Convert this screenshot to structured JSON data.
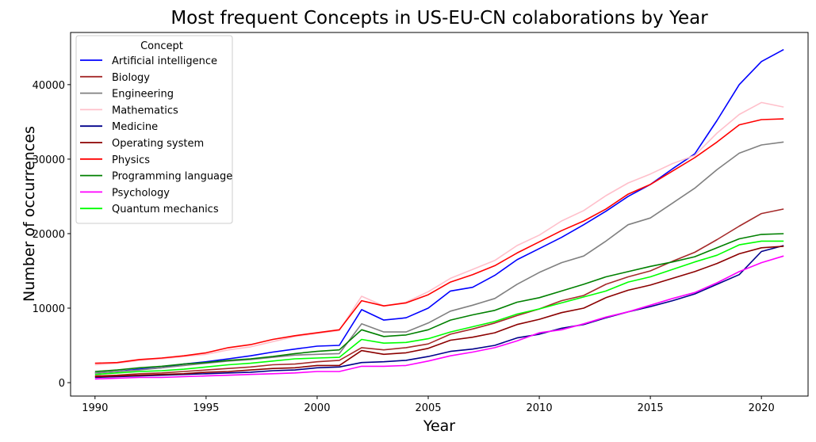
{
  "chart_data": {
    "type": "line",
    "title": "Most frequent Concepts in US-EU-CN colaborations by Year",
    "xlabel": "Year",
    "ylabel": "Number of occurrences",
    "xlim": [
      1988.9,
      2022.1
    ],
    "ylim": [
      -1800,
      47000
    ],
    "x_ticks": [
      1990,
      1995,
      2000,
      2005,
      2010,
      2015,
      2020
    ],
    "y_ticks": [
      0,
      10000,
      20000,
      30000,
      40000
    ],
    "grid": false,
    "legend": {
      "title": "Concept",
      "position": "top-left"
    },
    "x": [
      1990,
      1991,
      1992,
      1993,
      1994,
      1995,
      1996,
      1997,
      1998,
      1999,
      2000,
      2001,
      2002,
      2003,
      2004,
      2005,
      2006,
      2007,
      2008,
      2009,
      2010,
      2011,
      2012,
      2013,
      2014,
      2015,
      2016,
      2017,
      2018,
      2019,
      2020,
      2021
    ],
    "series": [
      {
        "name": "Artificial intelligence",
        "color": "#0000ff",
        "values": [
          1300,
          1500,
          1800,
          2000,
          2500,
          2800,
          3200,
          3600,
          4100,
          4500,
          4900,
          5000,
          9800,
          8400,
          8700,
          10000,
          12300,
          12800,
          14400,
          16500,
          18000,
          19500,
          21200,
          23000,
          25000,
          26600,
          28700,
          30700,
          35200,
          40000,
          43100,
          44700
        ]
      },
      {
        "name": "Biology",
        "color": "#a52a2a",
        "values": [
          900,
          1000,
          1200,
          1300,
          1500,
          1700,
          1900,
          2100,
          2400,
          2500,
          2800,
          3000,
          4700,
          4400,
          4700,
          5200,
          6500,
          7200,
          8000,
          9000,
          9900,
          11000,
          11700,
          13200,
          14200,
          15000,
          16300,
          17500,
          19200,
          21000,
          22700,
          23300
        ]
      },
      {
        "name": "Engineering",
        "color": "#808080",
        "values": [
          1300,
          1500,
          1700,
          2000,
          2300,
          2600,
          2900,
          3100,
          3400,
          3700,
          3800,
          3900,
          7900,
          6800,
          6800,
          8000,
          9600,
          10400,
          11300,
          13200,
          14800,
          16100,
          17000,
          19000,
          21200,
          22100,
          24100,
          26100,
          28600,
          30800,
          31900,
          32300
        ]
      },
      {
        "name": "Mathematics",
        "color": "#ffc0cb",
        "values": [
          2400,
          2600,
          3000,
          3200,
          3500,
          3800,
          4400,
          4800,
          5500,
          6200,
          6600,
          7000,
          11600,
          10300,
          10800,
          12200,
          14000,
          15200,
          16400,
          18400,
          19800,
          21700,
          23100,
          25100,
          26800,
          28000,
          29400,
          30500,
          33500,
          36000,
          37600,
          37000
        ]
      },
      {
        "name": "Medicine",
        "color": "#00008b",
        "values": [
          700,
          800,
          900,
          1000,
          1100,
          1200,
          1300,
          1400,
          1600,
          1700,
          2000,
          2100,
          2700,
          2800,
          3000,
          3500,
          4200,
          4500,
          5000,
          6000,
          6500,
          7300,
          7800,
          8700,
          9500,
          10200,
          11000,
          11900,
          13200,
          14500,
          17600,
          18400
        ]
      },
      {
        "name": "Operating system",
        "color": "#8b0000",
        "values": [
          800,
          900,
          1000,
          1100,
          1200,
          1400,
          1500,
          1700,
          1900,
          2000,
          2300,
          2300,
          4300,
          3800,
          4000,
          4600,
          5700,
          6100,
          6700,
          7800,
          8500,
          9400,
          10000,
          11400,
          12400,
          13100,
          14000,
          14900,
          16000,
          17300,
          18100,
          18300
        ]
      },
      {
        "name": "Physics",
        "color": "#ff0000",
        "values": [
          2600,
          2700,
          3100,
          3300,
          3600,
          4000,
          4700,
          5100,
          5800,
          6300,
          6700,
          7100,
          11000,
          10300,
          10700,
          11800,
          13500,
          14500,
          15700,
          17400,
          18900,
          20400,
          21700,
          23300,
          25300,
          26600,
          28400,
          30200,
          32300,
          34600,
          35300,
          35400
        ]
      },
      {
        "name": "Programming language",
        "color": "#008000",
        "values": [
          1500,
          1700,
          2000,
          2200,
          2500,
          2700,
          3000,
          3200,
          3500,
          3900,
          4200,
          4400,
          7100,
          6200,
          6400,
          7100,
          8400,
          9100,
          9700,
          10800,
          11400,
          12300,
          13200,
          14200,
          14900,
          15600,
          16200,
          16900,
          18100,
          19300,
          19900,
          20000
        ]
      },
      {
        "name": "Psychology",
        "color": "#ff00ff",
        "values": [
          500,
          600,
          700,
          700,
          800,
          900,
          1000,
          1100,
          1200,
          1300,
          1500,
          1500,
          2200,
          2200,
          2300,
          2900,
          3600,
          4100,
          4700,
          5600,
          6700,
          7100,
          7900,
          8800,
          9500,
          10400,
          11300,
          12100,
          13400,
          14900,
          16100,
          17000
        ]
      },
      {
        "name": "Quantum mechanics",
        "color": "#00ff00",
        "values": [
          1100,
          1300,
          1500,
          1600,
          1800,
          2100,
          2400,
          2600,
          2900,
          3200,
          3300,
          3400,
          5800,
          5300,
          5400,
          5900,
          6800,
          7500,
          8200,
          9200,
          9900,
          10700,
          11500,
          12300,
          13500,
          14200,
          15200,
          16200,
          17100,
          18500,
          19000,
          19000
        ]
      }
    ]
  }
}
